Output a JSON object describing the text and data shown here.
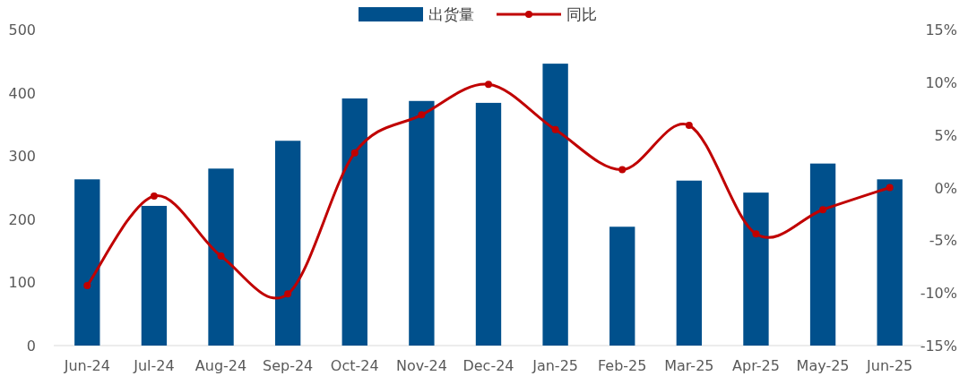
{
  "chart_data": {
    "type": "bar",
    "categories": [
      "Jun-24",
      "Jul-24",
      "Aug-24",
      "Sep-24",
      "Oct-24",
      "Nov-24",
      "Dec-24",
      "Jan-25",
      "Feb-25",
      "Mar-25",
      "Apr-25",
      "May-25",
      "Jun-25"
    ],
    "series": [
      {
        "name": "出货量",
        "color": "#00508c",
        "values": [
          263,
          221,
          280,
          324,
          391,
          387,
          384,
          446,
          188,
          261,
          242,
          288,
          263
        ]
      },
      {
        "name": "同比",
        "type": "line",
        "axis": "y2",
        "color": "#c00000",
        "marker": "circle",
        "values": [
          -9.3,
          -0.8,
          -6.5,
          -10.1,
          3.3,
          6.9,
          9.8,
          5.5,
          1.7,
          5.9,
          -4.4,
          -2.1,
          0.0
        ]
      }
    ],
    "ylim": [
      0,
      500
    ],
    "yticks": [
      0,
      100,
      200,
      300,
      400,
      500
    ],
    "y2lim": [
      -15,
      15
    ],
    "y2ticks": [
      {
        "value": -15,
        "label": "-15%"
      },
      {
        "value": -10,
        "label": "-10%"
      },
      {
        "value": -5,
        "label": "-5%"
      },
      {
        "value": 0,
        "label": "0%"
      },
      {
        "value": 5,
        "label": "5%"
      },
      {
        "value": 10,
        "label": "10%"
      },
      {
        "value": 15,
        "label": "15%"
      }
    ],
    "legend": "top",
    "grid": false
  }
}
